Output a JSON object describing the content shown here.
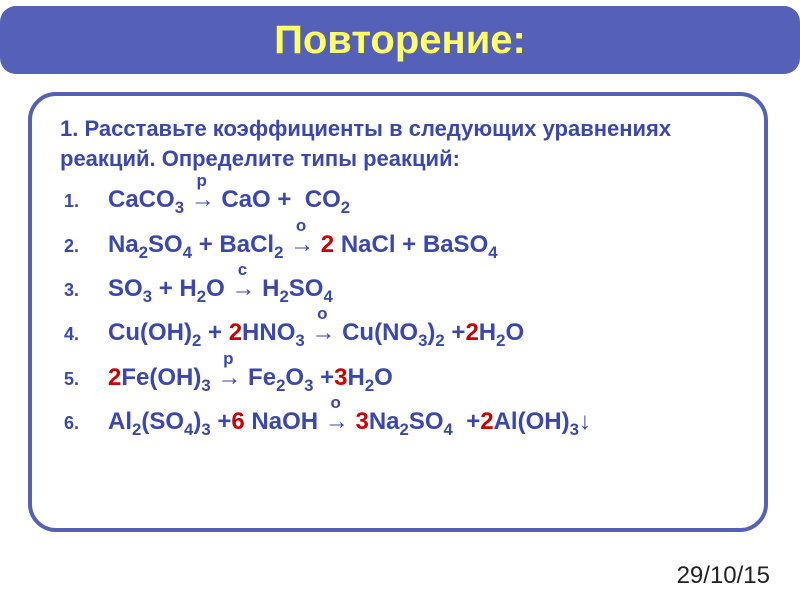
{
  "title": "Повторение:",
  "instruction": "1. Расставьте коэффициенты в следующих уравнениях реакций. Определите типы реакций:",
  "date": "29/10/15",
  "colors": {
    "title_bar_bg": "#5560b8",
    "title_text": "#ffff66",
    "box_border": "#5560b8",
    "box_bg": "#ffffff",
    "body_text": "#3b47b0",
    "coefficient": "#cc0000",
    "date_text": "#222222"
  },
  "equations": [
    {
      "number": "1.",
      "reaction_type": "р",
      "tokens": [
        {
          "kind": "species",
          "text": "CaCO",
          "sub": "3"
        },
        {
          "kind": "arrow"
        },
        {
          "kind": "species",
          "text": "CaO"
        },
        {
          "kind": "op",
          "text": " + "
        },
        {
          "kind": "space"
        },
        {
          "kind": "species",
          "text": "CO",
          "sub": "2"
        }
      ]
    },
    {
      "number": "2.",
      "reaction_type": "о",
      "tokens": [
        {
          "kind": "species",
          "text": "Na",
          "sub": "2"
        },
        {
          "kind": "species",
          "text": "SO",
          "sub": "4"
        },
        {
          "kind": "op",
          "text": " + "
        },
        {
          "kind": "species",
          "text": "BaCl",
          "sub": "2"
        },
        {
          "kind": "arrow"
        },
        {
          "kind": "coef",
          "text": "2"
        },
        {
          "kind": "space"
        },
        {
          "kind": "species",
          "text": "NaCl"
        },
        {
          "kind": "op",
          "text": " + "
        },
        {
          "kind": "species",
          "text": "BaSO",
          "sub": "4"
        }
      ]
    },
    {
      "number": "3.",
      "reaction_type": "с",
      "tokens": [
        {
          "kind": "species",
          "text": "SO",
          "sub": "3"
        },
        {
          "kind": "op",
          "text": " + "
        },
        {
          "kind": "species",
          "text": "H",
          "sub": "2"
        },
        {
          "kind": "species",
          "text": "O"
        },
        {
          "kind": "arrow"
        },
        {
          "kind": "species",
          "text": "H",
          "sub": "2"
        },
        {
          "kind": "species",
          "text": "SO",
          "sub": "4"
        }
      ]
    },
    {
      "number": "4.",
      "reaction_type": "о",
      "tokens": [
        {
          "kind": "species",
          "text": "Cu(OH)",
          "sub": "2"
        },
        {
          "kind": "op",
          "text": " + "
        },
        {
          "kind": "coef",
          "text": "2"
        },
        {
          "kind": "species",
          "text": "HNO",
          "sub": "3"
        },
        {
          "kind": "arrow"
        },
        {
          "kind": "species",
          "text": "Cu(NO",
          "sub": "3"
        },
        {
          "kind": "species",
          "text": ")",
          "sub": "2"
        },
        {
          "kind": "op",
          "text": " +"
        },
        {
          "kind": "coef",
          "text": "2"
        },
        {
          "kind": "species",
          "text": "H",
          "sub": "2"
        },
        {
          "kind": "species",
          "text": "O"
        }
      ]
    },
    {
      "number": "5.",
      "reaction_type": "р",
      "tokens": [
        {
          "kind": "coef",
          "text": "2"
        },
        {
          "kind": "species",
          "text": "Fe(OH)",
          "sub": "3"
        },
        {
          "kind": "arrow"
        },
        {
          "kind": "species",
          "text": "Fe",
          "sub": "2"
        },
        {
          "kind": "species",
          "text": "O",
          "sub": "3"
        },
        {
          "kind": "op",
          "text": " +"
        },
        {
          "kind": "coef",
          "text": "3"
        },
        {
          "kind": "species",
          "text": "H",
          "sub": "2"
        },
        {
          "kind": "species",
          "text": "O"
        }
      ]
    },
    {
      "number": "6.",
      "reaction_type": "о",
      "tokens": [
        {
          "kind": "species",
          "text": "Al",
          "sub": "2"
        },
        {
          "kind": "species",
          "text": "(SO",
          "sub": "4"
        },
        {
          "kind": "species",
          "text": ")",
          "sub": "3"
        },
        {
          "kind": "op",
          "text": " +"
        },
        {
          "kind": "coef",
          "text": "6"
        },
        {
          "kind": "species",
          "text": " NaOH"
        },
        {
          "kind": "arrow"
        },
        {
          "kind": "coef",
          "text": "3"
        },
        {
          "kind": "species",
          "text": "Na",
          "sub": "2"
        },
        {
          "kind": "species",
          "text": "SO",
          "sub": "4"
        },
        {
          "kind": "op",
          "text": "  +"
        },
        {
          "kind": "coef",
          "text": "2"
        },
        {
          "kind": "species",
          "text": "Al(OH)",
          "sub": "3"
        },
        {
          "kind": "suffix",
          "text": "↓"
        }
      ]
    }
  ]
}
